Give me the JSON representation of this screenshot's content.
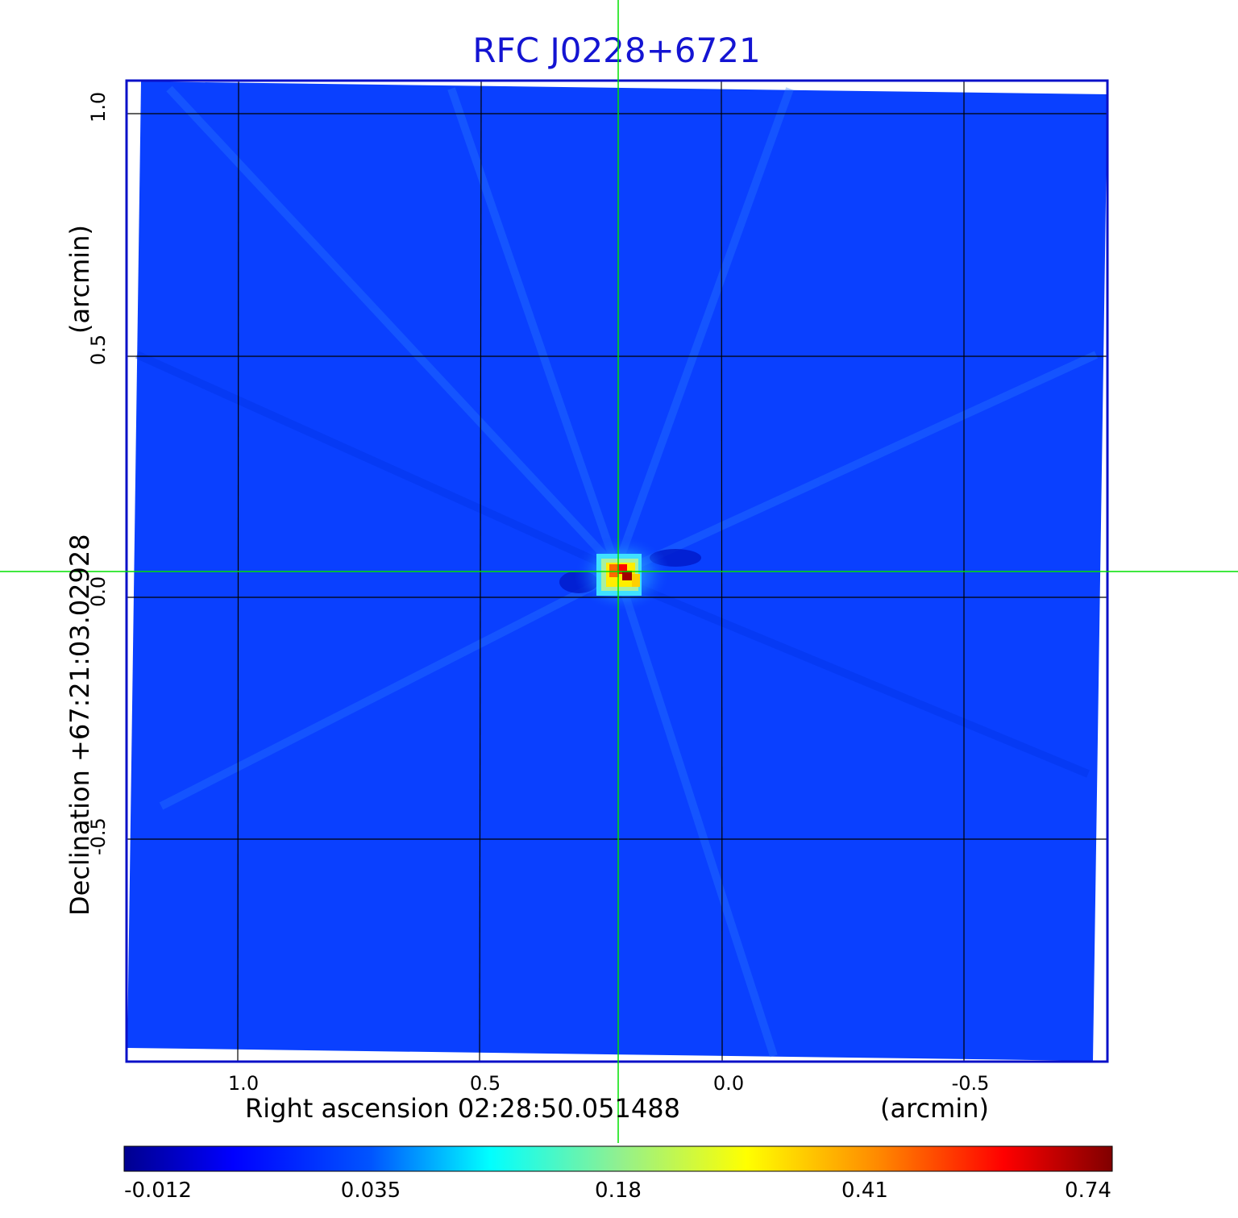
{
  "title": "RFC J0228+6721",
  "x_axis": {
    "label": "Right ascension  02:28:50.051488",
    "unit": "(arcmin)",
    "ticks": [
      "1.0",
      "0.5",
      "0.0",
      "-0.5"
    ]
  },
  "y_axis": {
    "label": "Declination  +67:21:03.02928",
    "unit": "(arcmin)",
    "ticks": [
      "1.0",
      "0.5",
      "0.0",
      "-0.5"
    ]
  },
  "colorbar": {
    "ticks": [
      "-0.012",
      "0.035",
      "0.18",
      "0.41",
      "0.74"
    ],
    "colormap": "jet"
  },
  "colors": {
    "title": "#1414d2",
    "frame": "#0a10c8",
    "crosshair": "#00e000",
    "background_field": "#0a40ff",
    "grid": "#000000"
  }
}
